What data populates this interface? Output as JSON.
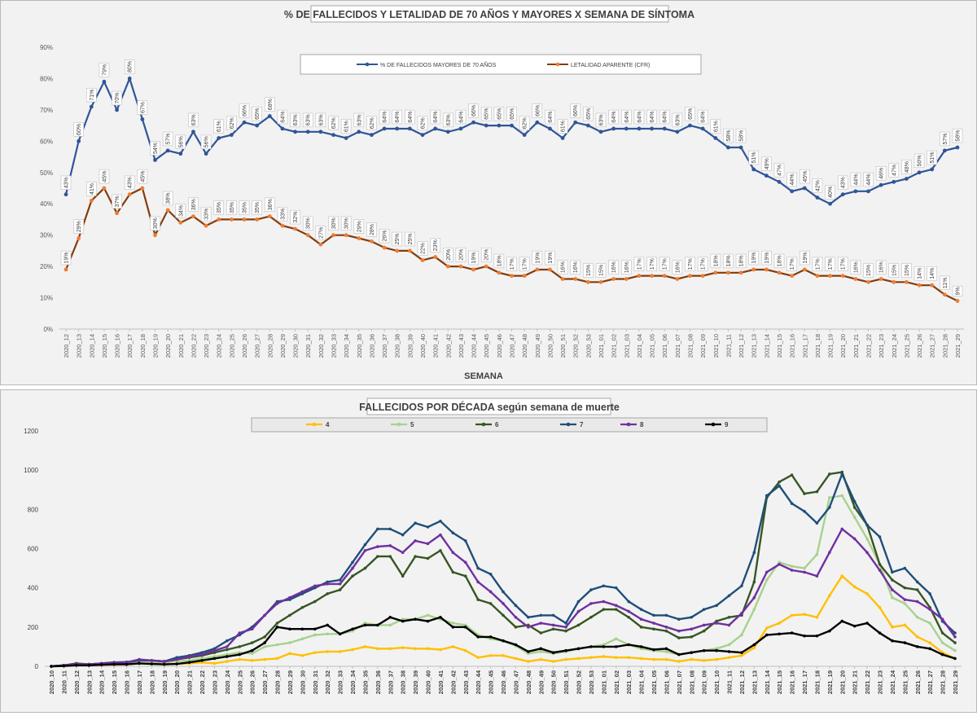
{
  "chart_data": [
    {
      "type": "line",
      "title": "% DE FALLECIDOS Y LETALIDAD DE 70 AÑOS Y MAYORES X SEMANA DE SÍNTOMA",
      "xlabel": "SEMANA",
      "ylabel": "",
      "ylim": [
        0,
        90
      ],
      "y_ticks": [
        "0%",
        "10%",
        "20%",
        "30%",
        "40%",
        "50%",
        "60%",
        "70%",
        "80%",
        "90%"
      ],
      "grid": false,
      "legend": "top-center",
      "categories": [
        "2020_12",
        "2020_13",
        "2020_14",
        "2020_15",
        "2020_16",
        "2020_17",
        "2020_18",
        "2020_19",
        "2020_20",
        "2020_21",
        "2020_22",
        "2020_23",
        "2020_24",
        "2020_25",
        "2020_26",
        "2020_27",
        "2020_28",
        "2020_29",
        "2020_30",
        "2020_31",
        "2020_32",
        "2020_33",
        "2020_34",
        "2020_35",
        "2020_36",
        "2020_37",
        "2020_38",
        "2020_39",
        "2020_40",
        "2020_41",
        "2020_42",
        "2020_43",
        "2020_44",
        "2020_45",
        "2020_46",
        "2020_47",
        "2020_48",
        "2020_49",
        "2020_50",
        "2020_51",
        "2020_52",
        "2020_53",
        "2021_01",
        "2021_02",
        "2021_03",
        "2021_04",
        "2021_05",
        "2021_06",
        "2021_07",
        "2021_08",
        "2021_09",
        "2021_10",
        "2021_11",
        "2021_12",
        "2021_13",
        "2021_14",
        "2021_15",
        "2021_16",
        "2021_17",
        "2021_18",
        "2021_19",
        "2021_20",
        "2021_21",
        "2021_22",
        "2021_23",
        "2021_24",
        "2021_25",
        "2021_26",
        "2021_27",
        "2021_28",
        "2021_29"
      ],
      "series": [
        {
          "name": "% DE FALLECIDOS MAYORES DE 70 AÑOS",
          "color": "#2f5597",
          "values": [
            43,
            60,
            71,
            79,
            70,
            80,
            67,
            54,
            57,
            56,
            63,
            56,
            61,
            62,
            66,
            65,
            68,
            64,
            63,
            63,
            63,
            62,
            61,
            63,
            62,
            64,
            64,
            64,
            62,
            64,
            63,
            64,
            66,
            65,
            65,
            65,
            62,
            66,
            64,
            61,
            66,
            65,
            63,
            64,
            64,
            64,
            64,
            64,
            63,
            65,
            64,
            61,
            58,
            58,
            51,
            49,
            47,
            44,
            45,
            42,
            40,
            43,
            44,
            44,
            46,
            47,
            48,
            50,
            51,
            57,
            58
          ],
          "labels": [
            "43%",
            "60%",
            "71%",
            "79%",
            "70%",
            "80%",
            "67%",
            "54%",
            "57%",
            "56%",
            "63%",
            "56%",
            "61%",
            "62%",
            "66%",
            "65%",
            "68%",
            "64%",
            "63%",
            "63%",
            "63%",
            "62%",
            "61%",
            "63%",
            "62%",
            "64%",
            "64%",
            "64%",
            "62%",
            "64%",
            "63%",
            "64%",
            "66%",
            "65%",
            "65%",
            "65%",
            "62%",
            "66%",
            "64%",
            "61%",
            "66%",
            "65%",
            "63%",
            "64%",
            "64%",
            "64%",
            "64%",
            "64%",
            "63%",
            "65%",
            "64%",
            "61%",
            "58%",
            "58%",
            "51%",
            "49%",
            "47%",
            "44%",
            "45%",
            "42%",
            "40%",
            "43%",
            "44%",
            "44%",
            "46%",
            "47%",
            "48%",
            "50%",
            "51%",
            "57%",
            "58%"
          ]
        },
        {
          "name": "LETALIDAD APARENTE (CFR)",
          "color": "#843c0c",
          "marker_color": "#ed7d31",
          "values": [
            19,
            29,
            41,
            45,
            37,
            43,
            45,
            30,
            38,
            34,
            36,
            33,
            35,
            35,
            35,
            35,
            36,
            33,
            32,
            30,
            27,
            30,
            30,
            29,
            28,
            26,
            25,
            25,
            22,
            23,
            20,
            20,
            19,
            20,
            18,
            17,
            17,
            19,
            19,
            16,
            16,
            15,
            15,
            16,
            16,
            17,
            17,
            17,
            16,
            17,
            17,
            18,
            18,
            18,
            19,
            19,
            18,
            17,
            19,
            17,
            17,
            17,
            16,
            15,
            16,
            15,
            15,
            14,
            14,
            11,
            9
          ],
          "labels": [
            "19%",
            "29%",
            "41%",
            "45%",
            "37%",
            "43%",
            "45%",
            "30%",
            "38%",
            "34%",
            "36%",
            "33%",
            "35%",
            "35%",
            "35%",
            "35%",
            "36%",
            "33%",
            "32%",
            "30%",
            "27%",
            "30%",
            "30%",
            "29%",
            "28%",
            "26%",
            "25%",
            "25%",
            "22%",
            "23%",
            "20%",
            "20%",
            "19%",
            "20%",
            "18%",
            "17%",
            "17%",
            "19%",
            "19%",
            "16%",
            "16%",
            "15%",
            "15%",
            "16%",
            "16%",
            "17%",
            "17%",
            "17%",
            "16%",
            "17%",
            "17%",
            "18%",
            "18%",
            "18%",
            "19%",
            "19%",
            "18%",
            "17%",
            "19%",
            "17%",
            "17%",
            "17%",
            "16%",
            "15%",
            "16%",
            "15%",
            "15%",
            "14%",
            "14%",
            "11%",
            "9%"
          ]
        }
      ]
    },
    {
      "type": "line",
      "title": "FALLECIDOS POR DÉCADA según semana de muerte",
      "xlabel": "",
      "ylabel": "",
      "ylim": [
        0,
        1200
      ],
      "y_ticks": [
        "0",
        "200",
        "400",
        "600",
        "800",
        "1000",
        "1200"
      ],
      "grid": false,
      "legend": "top-center",
      "categories": [
        "2020_10",
        "2020_11",
        "2020_12",
        "2020_13",
        "2020_14",
        "2020_15",
        "2020_16",
        "2020_17",
        "2020_18",
        "2020_19",
        "2020_20",
        "2020_21",
        "2020_22",
        "2020_23",
        "2020_24",
        "2020_25",
        "2020_26",
        "2020_27",
        "2020_28",
        "2020_29",
        "2020_30",
        "2020_31",
        "2020_32",
        "2020_33",
        "2020_34",
        "2020_35",
        "2020_36",
        "2020_37",
        "2020_38",
        "2020_39",
        "2020_40",
        "2020_41",
        "2020_42",
        "2020_43",
        "2020_44",
        "2020_45",
        "2020_46",
        "2020_47",
        "2020_48",
        "2020_49",
        "2020_50",
        "2020_51",
        "2020_52",
        "2020_53",
        "2021_01",
        "2021_02",
        "2021_03",
        "2021_04",
        "2021_05",
        "2021_06",
        "2021_07",
        "2021_08",
        "2021_09",
        "2021_10",
        "2021_11",
        "2021_12",
        "2021_13",
        "2021_14",
        "2021_15",
        "2021_16",
        "2021_17",
        "2021_18",
        "2021_19",
        "2021_20",
        "2021_21",
        "2021_22",
        "2021_23",
        "2021_24",
        "2021_25",
        "2021_26",
        "2021_27",
        "2021_28",
        "2021_29"
      ],
      "series": [
        {
          "name": "4",
          "color": "#ffc000",
          "values": [
            0,
            2,
            5,
            5,
            8,
            8,
            10,
            15,
            12,
            10,
            12,
            15,
            20,
            15,
            25,
            35,
            30,
            35,
            40,
            65,
            55,
            70,
            75,
            75,
            85,
            100,
            90,
            90,
            95,
            90,
            90,
            85,
            100,
            80,
            45,
            55,
            55,
            40,
            25,
            35,
            25,
            35,
            40,
            45,
            50,
            45,
            45,
            40,
            35,
            35,
            25,
            35,
            30,
            35,
            45,
            55,
            95,
            195,
            220,
            260,
            265,
            250,
            360,
            460,
            405,
            370,
            300,
            200,
            210,
            150,
            120,
            70,
            40
          ]
        },
        {
          "name": "5",
          "color": "#a9d18e",
          "values": [
            0,
            5,
            10,
            8,
            10,
            12,
            15,
            20,
            20,
            20,
            25,
            30,
            40,
            50,
            60,
            70,
            65,
            100,
            110,
            120,
            140,
            160,
            165,
            165,
            180,
            220,
            210,
            210,
            240,
            240,
            260,
            240,
            220,
            210,
            160,
            140,
            130,
            105,
            65,
            75,
            65,
            75,
            90,
            100,
            110,
            140,
            110,
            90,
            80,
            75,
            60,
            70,
            80,
            90,
            110,
            160,
            290,
            440,
            530,
            510,
            500,
            570,
            860,
            870,
            760,
            650,
            520,
            350,
            320,
            250,
            220,
            120,
            80
          ]
        },
        {
          "name": "6",
          "color": "#375623",
          "values": [
            0,
            5,
            15,
            10,
            15,
            20,
            20,
            30,
            30,
            25,
            35,
            45,
            55,
            70,
            85,
            100,
            120,
            150,
            220,
            260,
            300,
            330,
            370,
            390,
            460,
            500,
            560,
            560,
            460,
            560,
            550,
            590,
            480,
            460,
            340,
            320,
            260,
            200,
            210,
            170,
            190,
            180,
            210,
            250,
            290,
            290,
            250,
            200,
            190,
            180,
            145,
            150,
            180,
            230,
            250,
            260,
            430,
            860,
            940,
            975,
            880,
            890,
            980,
            990,
            810,
            720,
            520,
            440,
            400,
            390,
            300,
            170,
            120
          ]
        },
        {
          "name": "7",
          "color": "#1f4e79",
          "values": [
            0,
            5,
            10,
            10,
            15,
            20,
            22,
            30,
            30,
            25,
            45,
            55,
            70,
            90,
            130,
            160,
            200,
            260,
            330,
            340,
            370,
            400,
            430,
            440,
            530,
            620,
            700,
            700,
            670,
            730,
            710,
            740,
            680,
            640,
            500,
            470,
            380,
            310,
            250,
            260,
            260,
            220,
            330,
            390,
            410,
            400,
            330,
            290,
            260,
            260,
            240,
            250,
            290,
            310,
            360,
            410,
            580,
            870,
            920,
            830,
            790,
            730,
            810,
            980,
            840,
            720,
            660,
            480,
            500,
            430,
            370,
            230,
            170
          ]
        },
        {
          "name": "8",
          "color": "#7030a0",
          "values": [
            0,
            5,
            10,
            10,
            15,
            18,
            20,
            35,
            30,
            25,
            35,
            50,
            60,
            80,
            100,
            170,
            190,
            260,
            320,
            350,
            380,
            410,
            420,
            420,
            500,
            590,
            610,
            615,
            580,
            640,
            625,
            670,
            580,
            530,
            430,
            380,
            320,
            250,
            200,
            220,
            210,
            200,
            280,
            320,
            330,
            310,
            280,
            240,
            220,
            200,
            180,
            190,
            210,
            220,
            210,
            270,
            350,
            480,
            520,
            490,
            480,
            460,
            580,
            700,
            650,
            580,
            490,
            390,
            340,
            330,
            290,
            240,
            150
          ]
        },
        {
          "name": "9",
          "color": "#000000",
          "values": [
            0,
            2,
            5,
            5,
            8,
            10,
            10,
            15,
            12,
            10,
            12,
            20,
            30,
            40,
            50,
            60,
            80,
            120,
            200,
            190,
            190,
            190,
            210,
            165,
            190,
            210,
            210,
            250,
            230,
            240,
            230,
            250,
            200,
            200,
            150,
            150,
            130,
            110,
            75,
            90,
            70,
            80,
            90,
            100,
            100,
            100,
            110,
            100,
            85,
            90,
            60,
            70,
            80,
            80,
            75,
            70,
            110,
            160,
            165,
            170,
            155,
            155,
            180,
            230,
            205,
            220,
            170,
            130,
            120,
            100,
            90,
            60,
            40
          ]
        }
      ]
    }
  ]
}
